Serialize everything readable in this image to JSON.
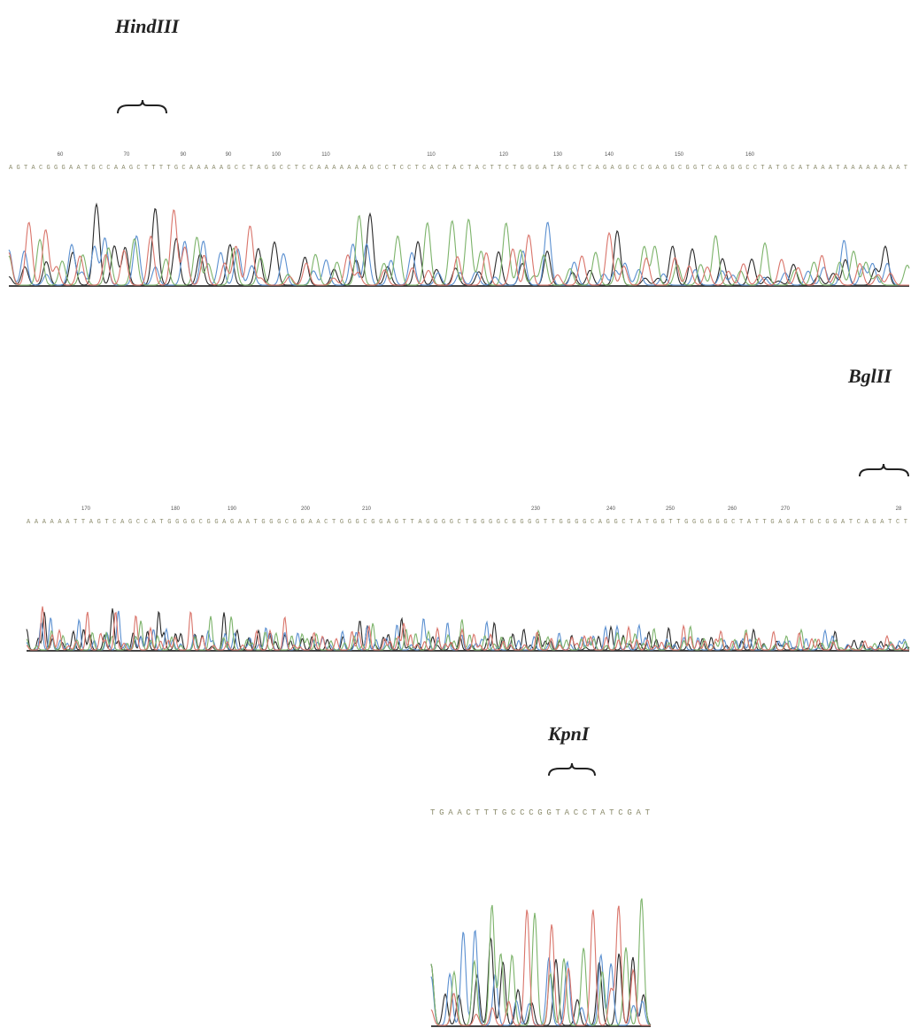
{
  "panels": [
    {
      "enzyme": "HindIII",
      "positions": [
        "60",
        "70",
        "90",
        "90",
        "100",
        "110",
        "110",
        "120",
        "130",
        "140",
        "150",
        "160"
      ],
      "sequence": "AGTACGGGAATGCCAAGCTTTTGCAAAAAGCCTAGGCCTCCAAAAAAAGCCTCCTCACTACTACTTCTGGGATAGCTCAGAGGCCGAGGCGGTCAGGGCCTATGCATAAATAAAAAAAAT"
    },
    {
      "enzyme": "BglII",
      "positions": [
        "170",
        "180",
        "190",
        "200",
        "210",
        "230",
        "240",
        "250",
        "260",
        "270",
        "28"
      ],
      "sequence": "AAAAAATTAGTCAGCCATGGGGCGGAGAATGGGCGGAACTGGGCGGAGTTAGGGGCTGGGGCGGGGTTGGGGCAGGCTATGGTTGGGGGGCTATTGAGATGCGGATCAGATCT"
    },
    {
      "enzyme": "KpnI",
      "sequence": "TGAACTTTGCCCGGTACCTATCGAT"
    }
  ]
}
